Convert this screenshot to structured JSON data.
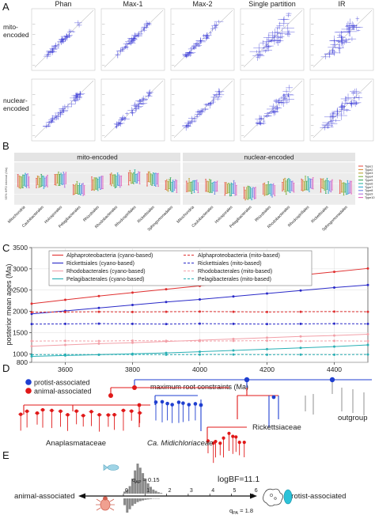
{
  "panel_letters": [
    "A",
    "B",
    "C",
    "D",
    "E"
  ],
  "panel_a": {
    "column_titles": [
      "Phan",
      "Max-1",
      "Max-2",
      "Single partition",
      "IR"
    ],
    "row_labels": [
      [
        "mito-",
        "encoded"
      ],
      [
        "nuclear-",
        "encoded"
      ]
    ],
    "point_color": "#3535d6",
    "spread": [
      [
        0.05,
        0.05,
        0.06,
        0.16,
        0.17
      ],
      [
        0.05,
        0.06,
        0.06,
        0.1,
        0.13
      ]
    ]
  },
  "panel_b": {
    "facet_titles": [
      "mito-encoded",
      "nuclear-encoded"
    ],
    "ylabel": "95% HPD interval (Ma)",
    "categories": [
      "Mitochondria",
      "Caulobacterales",
      "Holosporales",
      "Pelagibacterales",
      "Rhizobiales",
      "Rhodobacterales",
      "Rhodospirillales",
      "Rickettsiales",
      "Sphingomonadales"
    ],
    "legend": [
      "Type1",
      "Type2",
      "Type3",
      "Type4",
      "Type5",
      "Type6",
      "Type7",
      "Type8",
      "Type9",
      "Type10"
    ],
    "series_colors": [
      "#e8544e",
      "#d6893a",
      "#b7a232",
      "#7fb33a",
      "#3aa85c",
      "#2fb3a0",
      "#2ea7d6",
      "#6b82e6",
      "#b46ee0",
      "#e363b8"
    ],
    "center_mito": [
      0.55,
      0.55,
      0.6,
      0.38,
      0.5,
      0.58,
      0.65,
      0.62,
      0.45
    ],
    "center_nuclear": [
      0.44,
      0.42,
      0.38,
      0.26,
      0.36,
      0.44,
      0.48,
      0.46,
      0.4
    ]
  },
  "chart_data": {
    "type": "line",
    "xlabel": "maximum root constraints (Ma)",
    "ylabel": "posterior mean ages (Ma)",
    "xlim": [
      3500,
      4500
    ],
    "ylim": [
      800,
      3500
    ],
    "xticks": [
      3600,
      3800,
      4000,
      4200,
      4400
    ],
    "yticks": [
      800,
      1000,
      1500,
      2000,
      2500,
      3000,
      3500
    ],
    "x": [
      3500,
      3600,
      3700,
      3800,
      3900,
      4000,
      4100,
      4200,
      4300,
      4400,
      4500
    ],
    "legend_position": "top-left",
    "series": [
      {
        "name": "Alphaproteobacteria (cyano-based)",
        "color": "#e03030",
        "dash": false,
        "values": [
          2180,
          2270,
          2360,
          2440,
          2520,
          2600,
          2680,
          2760,
          2850,
          2930,
          3010
        ]
      },
      {
        "name": "Rickettsiales (cyano-based)",
        "color": "#2a2ac8",
        "dash": false,
        "values": [
          1940,
          2010,
          2080,
          2150,
          2220,
          2280,
          2350,
          2420,
          2490,
          2560,
          2620
        ]
      },
      {
        "name": "Rhodobacterales (cyano-based)",
        "color": "#f2a0a8",
        "dash": false,
        "values": [
          1180,
          1210,
          1240,
          1260,
          1290,
          1320,
          1350,
          1380,
          1410,
          1430,
          1460
        ]
      },
      {
        "name": "Pelagibacterales (cyano-based)",
        "color": "#2ab0b5",
        "dash": false,
        "values": [
          940,
          960,
          980,
          1000,
          1020,
          1050,
          1080,
          1110,
          1140,
          1170,
          1210
        ]
      },
      {
        "name": "Alphaproteobacteria (mito-based)",
        "color": "#e03030",
        "dash": true,
        "values": [
          1980,
          1985,
          1990,
          1985,
          1990,
          1995,
          1990,
          1985,
          1990,
          1995,
          1990
        ]
      },
      {
        "name": "Rickettsiales (mito-based)",
        "color": "#2a2ac8",
        "dash": true,
        "values": [
          1700,
          1705,
          1710,
          1705,
          1700,
          1710,
          1705,
          1700,
          1705,
          1710,
          1705
        ]
      },
      {
        "name": "Rhodobacterales (mito-based)",
        "color": "#f2a0a8",
        "dash": true,
        "values": [
          1300,
          1305,
          1300,
          1310,
          1305,
          1300,
          1305,
          1310,
          1300,
          1305,
          1300
        ]
      },
      {
        "name": "Pelagibacterales (mito-based)",
        "color": "#2ab0b5",
        "dash": true,
        "values": [
          980,
          982,
          980,
          985,
          980,
          982,
          985,
          980,
          982,
          980,
          985
        ]
      }
    ]
  },
  "panel_d": {
    "legend": [
      {
        "label": "protist-associated",
        "color": "#1f3fd0"
      },
      {
        "label": "animal-associated",
        "color": "#e01818"
      }
    ],
    "clades": [
      "Anaplasmataceae",
      "Ca. Midichloriaceae",
      "Rickettsiaceae",
      "outgroup"
    ]
  },
  "panel_e": {
    "annotation_top": "q",
    "annotation_top_sub": "AP",
    "annotation_top_value": "= 0.15",
    "annotation_bottom": "q",
    "annotation_bottom_sub": "PA",
    "annotation_bottom_value": "= 1.8",
    "stat": "logBF=11.1",
    "left_label": "animal-associated",
    "right_label": "protist-associated",
    "axis_ticks": [
      "0",
      "1",
      "2",
      "3",
      "4",
      "5",
      "6"
    ],
    "upper_hist": [
      3,
      6,
      11,
      22,
      34,
      44,
      38,
      30,
      22,
      15,
      10,
      6,
      4,
      2,
      1
    ],
    "lower_hist": [
      20,
      42,
      32,
      22,
      16,
      11,
      8,
      6,
      4,
      3,
      2,
      1,
      1,
      1,
      0,
      0,
      0,
      0,
      0,
      0
    ],
    "hist_color": "#8a8a8a"
  }
}
